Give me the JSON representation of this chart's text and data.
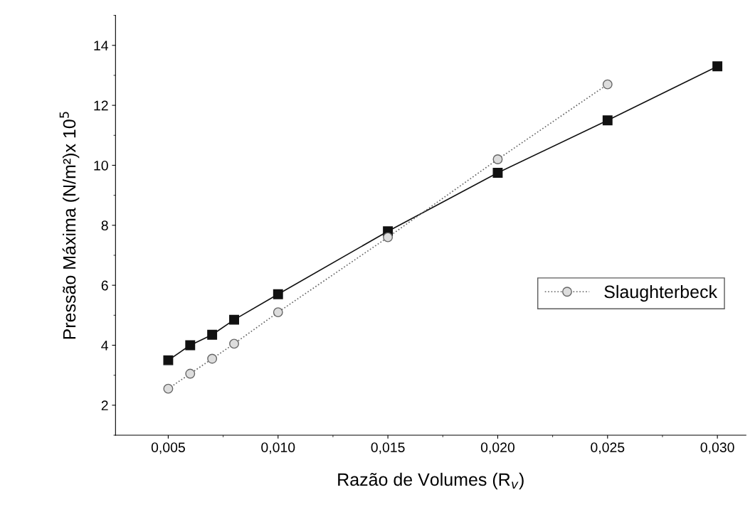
{
  "chart_data": {
    "type": "line",
    "xlabel": "Razão de Volumes (R$_{v}$)",
    "ylabel": "Pressão Máxima (N/m²)x 10$^{5}$",
    "xlim": [
      0.0026,
      0.0313
    ],
    "ylim": [
      1.0,
      15.0
    ],
    "xticks": [
      {
        "value": 0.005,
        "label": "0,005"
      },
      {
        "value": 0.01,
        "label": "0,010"
      },
      {
        "value": 0.015,
        "label": "0,015"
      },
      {
        "value": 0.02,
        "label": "0,020"
      },
      {
        "value": 0.025,
        "label": "0,025"
      },
      {
        "value": 0.03,
        "label": "0,030"
      }
    ],
    "yticks": [
      2,
      4,
      6,
      8,
      10,
      12,
      14
    ],
    "grid": false,
    "legend": "lower right",
    "series": [
      {
        "color": "#111111",
        "marker": "square",
        "line_style": "solid",
        "x": [
          0.005,
          0.006,
          0.007,
          0.008,
          0.01,
          0.015,
          0.02,
          0.025,
          0.03
        ],
        "values": [
          3.5,
          4.0,
          4.35,
          4.85,
          5.7,
          7.8,
          9.75,
          11.5,
          13.3
        ]
      },
      {
        "name": "Slaughterbeck",
        "color": "#666666",
        "marker": "circle",
        "line_style": "dotted",
        "x": [
          0.005,
          0.006,
          0.007,
          0.008,
          0.01,
          0.015,
          0.02,
          0.025
        ],
        "values": [
          2.55,
          3.05,
          3.55,
          4.05,
          5.1,
          7.6,
          10.2,
          12.7
        ]
      }
    ]
  }
}
